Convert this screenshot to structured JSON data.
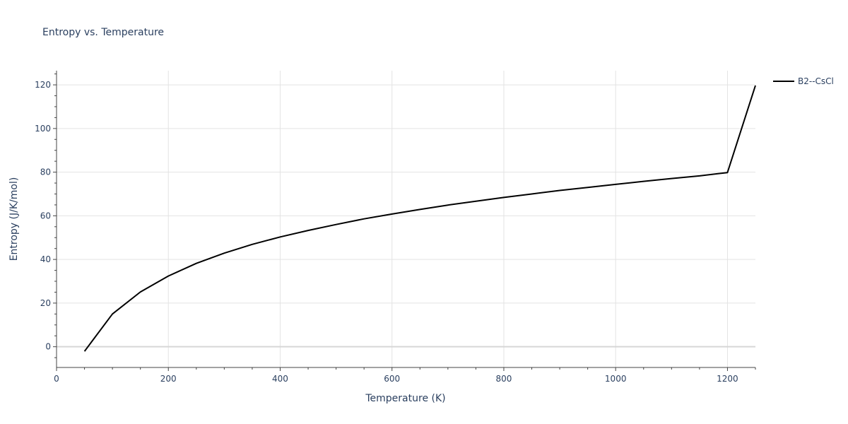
{
  "chart_data": {
    "type": "line",
    "title": "Entropy vs. Temperature",
    "xlabel": "Temperature (K)",
    "ylabel": "Entropy (J/K/mol)",
    "xlim": [
      0,
      1250
    ],
    "ylim": [
      -9.5,
      126.5
    ],
    "xticks": [
      0,
      200,
      400,
      600,
      800,
      1000,
      1200
    ],
    "yticks": [
      0,
      20,
      40,
      60,
      80,
      100,
      120
    ],
    "grid": true,
    "legend_position": "top-right",
    "series": [
      {
        "name": "B2--CsCl",
        "color": "#000000",
        "x": [
          50,
          100,
          150,
          200,
          250,
          300,
          350,
          400,
          450,
          500,
          550,
          600,
          650,
          700,
          750,
          800,
          850,
          900,
          950,
          1000,
          1050,
          1100,
          1150,
          1200,
          1250
        ],
        "y": [
          -2.1,
          15.0,
          25.1,
          32.4,
          38.2,
          42.9,
          46.9,
          50.3,
          53.3,
          56.0,
          58.6,
          60.8,
          62.9,
          64.9,
          66.7,
          68.4,
          70.0,
          71.6,
          73.0,
          74.4,
          75.8,
          77.1,
          78.3,
          79.8,
          119.7
        ]
      }
    ]
  }
}
